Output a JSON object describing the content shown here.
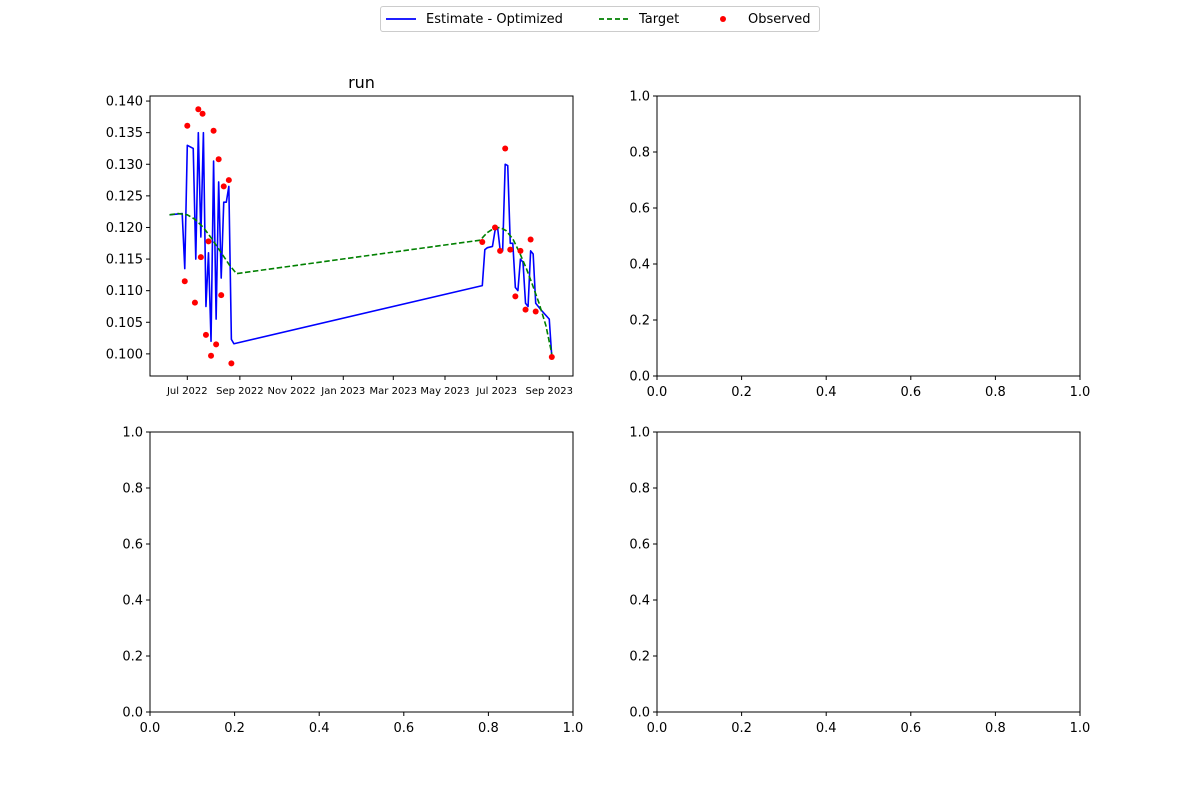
{
  "legend": {
    "items": [
      {
        "label": "Estimate - Optimized",
        "color": "#0000ff",
        "style": "solid"
      },
      {
        "label": "Target",
        "color": "#008000",
        "style": "dashed"
      },
      {
        "label": "Observed",
        "color": "#ff0000",
        "style": "marker"
      }
    ]
  },
  "chart_data": [
    {
      "type": "line",
      "title": "run",
      "xlabel": "",
      "ylabel": "",
      "x_ticks": [
        "Jul 2022",
        "Sep 2022",
        "Nov 2022",
        "Jan 2023",
        "Mar 2023",
        "May 2023",
        "Jul 2023",
        "Sep 2023"
      ],
      "y_ticks": [
        "0.100",
        "0.105",
        "0.110",
        "0.115",
        "0.120",
        "0.125",
        "0.130",
        "0.135",
        "0.140"
      ],
      "ylim": [
        0.0965,
        0.1408
      ],
      "xlim": [
        "2022-05-18",
        "2023-09-29"
      ],
      "grid": false,
      "series": [
        {
          "name": "Estimate - Optimized",
          "style": "line",
          "color": "#0000ff",
          "points": [
            [
              "2022-06-10",
              0.122
            ],
            [
              "2022-06-25",
              0.1222
            ],
            [
              "2022-06-28",
              0.1135
            ],
            [
              "2022-07-01",
              0.133
            ],
            [
              "2022-07-08",
              0.1325
            ],
            [
              "2022-07-11",
              0.115
            ],
            [
              "2022-07-14",
              0.135
            ],
            [
              "2022-07-17",
              0.1185
            ],
            [
              "2022-07-20",
              0.135
            ],
            [
              "2022-07-23",
              0.1075
            ],
            [
              "2022-07-26",
              0.116
            ],
            [
              "2022-07-29",
              0.102
            ],
            [
              "2022-08-01",
              0.1305
            ],
            [
              "2022-08-04",
              0.1055
            ],
            [
              "2022-08-07",
              0.1272
            ],
            [
              "2022-08-10",
              0.112
            ],
            [
              "2022-08-13",
              0.124
            ],
            [
              "2022-08-16",
              0.124
            ],
            [
              "2022-08-19",
              0.1265
            ],
            [
              "2022-08-22",
              0.1023
            ],
            [
              "2022-08-25",
              0.1016
            ],
            [
              "2023-06-14",
              0.1108
            ],
            [
              "2023-06-17",
              0.1165
            ],
            [
              "2023-06-20",
              0.1168
            ],
            [
              "2023-06-26",
              0.117
            ],
            [
              "2023-06-29",
              0.1195
            ],
            [
              "2023-07-02",
              0.12
            ],
            [
              "2023-07-05",
              0.1165
            ],
            [
              "2023-07-08",
              0.1163
            ],
            [
              "2023-07-11",
              0.13
            ],
            [
              "2023-07-14",
              0.1298
            ],
            [
              "2023-07-17",
              0.1175
            ],
            [
              "2023-07-20",
              0.1175
            ],
            [
              "2023-07-23",
              0.1105
            ],
            [
              "2023-07-26",
              0.11
            ],
            [
              "2023-07-29",
              0.115
            ],
            [
              "2023-08-01",
              0.1145
            ],
            [
              "2023-08-04",
              0.108
            ],
            [
              "2023-08-07",
              0.1075
            ],
            [
              "2023-08-10",
              0.1163
            ],
            [
              "2023-08-13",
              0.1158
            ],
            [
              "2023-08-16",
              0.108
            ],
            [
              "2023-08-22",
              0.107
            ],
            [
              "2023-09-01",
              0.1055
            ],
            [
              "2023-09-04",
              0.0995
            ]
          ]
        },
        {
          "name": "Target",
          "style": "dashed",
          "color": "#008000",
          "points": [
            [
              "2022-06-10",
              0.122
            ],
            [
              "2022-06-20",
              0.1222
            ],
            [
              "2022-07-01",
              0.122
            ],
            [
              "2022-07-10",
              0.1213
            ],
            [
              "2022-07-20",
              0.12
            ],
            [
              "2022-07-30",
              0.1182
            ],
            [
              "2022-08-10",
              0.116
            ],
            [
              "2022-08-20",
              0.114
            ],
            [
              "2022-08-28",
              0.1127
            ],
            [
              "2023-06-12",
              0.118
            ],
            [
              "2023-06-15",
              0.1185
            ],
            [
              "2023-06-20",
              0.1192
            ],
            [
              "2023-06-28",
              0.1199
            ],
            [
              "2023-07-05",
              0.12
            ],
            [
              "2023-07-12",
              0.1195
            ],
            [
              "2023-07-20",
              0.1182
            ],
            [
              "2023-07-28",
              0.116
            ],
            [
              "2023-08-05",
              0.1135
            ],
            [
              "2023-08-12",
              0.111
            ],
            [
              "2023-08-20",
              0.108
            ],
            [
              "2023-08-28",
              0.1045
            ],
            [
              "2023-09-04",
              0.1
            ]
          ]
        },
        {
          "name": "Observed",
          "style": "scatter",
          "color": "#ff0000",
          "points": [
            [
              "2022-06-28",
              0.1115
            ],
            [
              "2022-07-01",
              0.1361
            ],
            [
              "2022-07-10",
              0.1081
            ],
            [
              "2022-07-14",
              0.1387
            ],
            [
              "2022-07-17",
              0.1153
            ],
            [
              "2022-07-19",
              0.138
            ],
            [
              "2022-07-23",
              0.103
            ],
            [
              "2022-07-26",
              0.1178
            ],
            [
              "2022-07-29",
              0.0997
            ],
            [
              "2022-08-01",
              0.1353
            ],
            [
              "2022-08-04",
              0.1015
            ],
            [
              "2022-08-07",
              0.1308
            ],
            [
              "2022-08-10",
              0.1093
            ],
            [
              "2022-08-13",
              0.1265
            ],
            [
              "2022-08-19",
              0.1275
            ],
            [
              "2022-08-22",
              0.0985
            ],
            [
              "2023-06-14",
              0.1177
            ],
            [
              "2023-06-29",
              0.12
            ],
            [
              "2023-07-05",
              0.1163
            ],
            [
              "2023-07-11",
              0.1325
            ],
            [
              "2023-07-17",
              0.1165
            ],
            [
              "2023-07-23",
              0.1091
            ],
            [
              "2023-07-29",
              0.1163
            ],
            [
              "2023-08-04",
              0.107
            ],
            [
              "2023-08-10",
              0.1181
            ],
            [
              "2023-08-16",
              0.1067
            ],
            [
              "2023-09-04",
              0.0995
            ]
          ]
        }
      ]
    },
    {
      "type": "line",
      "series": [],
      "xlim": [
        0,
        1
      ],
      "ylim": [
        0,
        1
      ],
      "x_ticks": [
        "0.0",
        "0.2",
        "0.4",
        "0.6",
        "0.8",
        "1.0"
      ],
      "y_ticks": [
        "0.0",
        "0.2",
        "0.4",
        "0.6",
        "0.8",
        "1.0"
      ]
    },
    {
      "type": "line",
      "series": [],
      "xlim": [
        0,
        1
      ],
      "ylim": [
        0,
        1
      ],
      "x_ticks": [
        "0.0",
        "0.2",
        "0.4",
        "0.6",
        "0.8",
        "1.0"
      ],
      "y_ticks": [
        "0.0",
        "0.2",
        "0.4",
        "0.6",
        "0.8",
        "1.0"
      ]
    },
    {
      "type": "line",
      "series": [],
      "xlim": [
        0,
        1
      ],
      "ylim": [
        0,
        1
      ],
      "x_ticks": [
        "0.0",
        "0.2",
        "0.4",
        "0.6",
        "0.8",
        "1.0"
      ],
      "y_ticks": [
        "0.0",
        "0.2",
        "0.4",
        "0.6",
        "0.8",
        "1.0"
      ]
    }
  ]
}
